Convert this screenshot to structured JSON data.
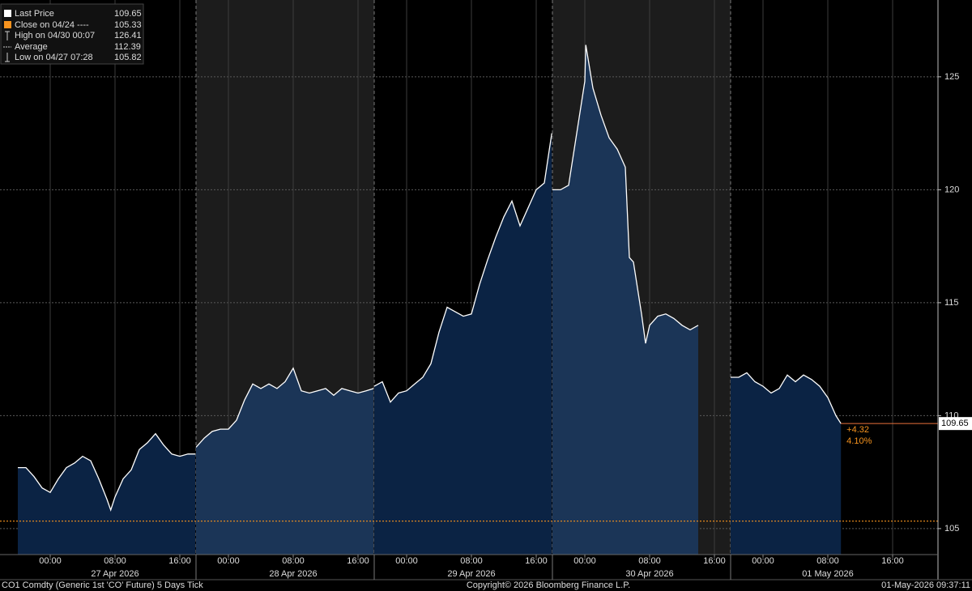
{
  "chart_data": {
    "type": "line",
    "x": [
      "04/26 20:00",
      "04/26 21:00",
      "04/26 22:00",
      "04/26 23:00",
      "04/27 00:00",
      "04/27 01:00",
      "04/27 02:00",
      "04/27 03:00",
      "04/27 04:00",
      "04/27 05:00",
      "04/27 06:00",
      "04/27 07:00",
      "04/27 07:28",
      "04/27 08:00",
      "04/27 09:00",
      "04/27 10:00",
      "04/27 11:00",
      "04/27 12:00",
      "04/27 13:00",
      "04/27 14:00",
      "04/27 15:00",
      "04/27 16:00",
      "04/27 17:00",
      "04/27 17:55",
      "04/27 20:00",
      "04/27 21:00",
      "04/27 22:00",
      "04/27 23:00",
      "04/28 00:00",
      "04/28 01:00",
      "04/28 02:00",
      "04/28 03:00",
      "04/28 04:00",
      "04/28 05:00",
      "04/28 06:00",
      "04/28 07:00",
      "04/28 08:00",
      "04/28 09:00",
      "04/28 10:00",
      "04/28 11:00",
      "04/28 12:00",
      "04/28 13:00",
      "04/28 14:00",
      "04/28 15:00",
      "04/28 16:00",
      "04/28 17:00",
      "04/28 17:55",
      "04/28 20:00",
      "04/28 21:00",
      "04/28 22:00",
      "04/28 23:00",
      "04/29 00:00",
      "04/29 01:00",
      "04/29 02:00",
      "04/29 03:00",
      "04/29 04:00",
      "04/29 05:00",
      "04/29 06:00",
      "04/29 07:00",
      "04/29 08:00",
      "04/29 09:00",
      "04/29 10:00",
      "04/29 11:00",
      "04/29 12:00",
      "04/29 13:00",
      "04/29 14:00",
      "04/29 15:00",
      "04/29 16:00",
      "04/29 17:00",
      "04/29 17:55",
      "04/29 20:00",
      "04/29 21:00",
      "04/29 22:00",
      "04/29 23:00",
      "04/30 00:00",
      "04/30 00:07",
      "04/30 01:00",
      "04/30 02:00",
      "04/30 03:00",
      "04/30 04:00",
      "04/30 05:00",
      "04/30 05:30",
      "04/30 06:00",
      "04/30 07:00",
      "04/30 07:30",
      "04/30 08:00",
      "04/30 09:00",
      "04/30 10:00",
      "04/30 11:00",
      "04/30 12:00",
      "04/30 13:00",
      "04/30 14:00",
      "04/30 20:00",
      "04/30 21:00",
      "04/30 22:00",
      "04/30 23:00",
      "05/01 00:00",
      "05/01 01:00",
      "05/01 02:00",
      "05/01 03:00",
      "05/01 04:00",
      "05/01 05:00",
      "05/01 06:00",
      "05/01 07:00",
      "05/01 08:00",
      "05/01 09:00",
      "05/01 09:37"
    ],
    "series": [
      {
        "name": "Last Price",
        "color": "#ffffff",
        "values": [
          107.7,
          107.7,
          107.3,
          106.8,
          106.6,
          107.2,
          107.7,
          107.9,
          108.2,
          108.0,
          107.2,
          106.3,
          105.82,
          106.4,
          107.2,
          107.6,
          108.5,
          108.8,
          109.2,
          108.7,
          108.3,
          108.2,
          108.3,
          108.3,
          108.6,
          109.0,
          109.3,
          109.4,
          109.4,
          109.8,
          110.7,
          111.4,
          111.2,
          111.4,
          111.2,
          111.5,
          112.1,
          111.1,
          111.0,
          111.1,
          111.2,
          110.9,
          111.2,
          111.1,
          111.0,
          111.1,
          111.2,
          111.3,
          111.5,
          110.6,
          111.0,
          111.1,
          111.4,
          111.7,
          112.3,
          113.7,
          114.8,
          114.6,
          114.4,
          114.5,
          115.8,
          116.9,
          117.9,
          118.8,
          119.5,
          118.4,
          119.2,
          120.0,
          120.3,
          122.5,
          120.0,
          120.0,
          120.2,
          122.5,
          124.8,
          126.41,
          124.5,
          123.3,
          122.3,
          121.8,
          121.0,
          117.0,
          116.8,
          114.5,
          113.2,
          114.0,
          114.4,
          114.5,
          114.3,
          114.0,
          113.8,
          114.0,
          111.7,
          111.7,
          111.9,
          111.5,
          111.3,
          111.0,
          111.2,
          111.8,
          111.5,
          111.8,
          111.6,
          111.3,
          110.8,
          110.0,
          109.65
        ]
      }
    ],
    "xlim": [
      "04/26 20:00",
      "05/01 18:00"
    ],
    "ylim": [
      103.85,
      128.4
    ],
    "yticks": [
      105,
      110,
      115,
      120,
      125
    ],
    "xticks": [
      {
        "value": "04/27 00:00",
        "label": "00:00"
      },
      {
        "value": "04/27 08:00",
        "label": "08:00"
      },
      {
        "value": "04/27 16:00",
        "label": "16:00"
      },
      {
        "value": "04/28 00:00",
        "label": "00:00"
      },
      {
        "value": "04/28 08:00",
        "label": "08:00"
      },
      {
        "value": "04/28 16:00",
        "label": "16:00"
      },
      {
        "value": "04/29 00:00",
        "label": "00:00"
      },
      {
        "value": "04/29 08:00",
        "label": "08:00"
      },
      {
        "value": "04/29 16:00",
        "label": "16:00"
      },
      {
        "value": "04/30 00:00",
        "label": "00:00"
      },
      {
        "value": "04/30 08:00",
        "label": "08:00"
      },
      {
        "value": "04/30 16:00",
        "label": "16:00"
      },
      {
        "value": "05/01 00:00",
        "label": "00:00"
      },
      {
        "value": "05/01 08:00",
        "label": "08:00"
      },
      {
        "value": "05/01 16:00",
        "label": "16:00"
      }
    ],
    "date_labels": [
      {
        "value": "04/27 08:00",
        "label": "27 Apr 2026"
      },
      {
        "value": "04/28 08:00",
        "label": "28 Apr 2026"
      },
      {
        "value": "04/29 08:00",
        "label": "29 Apr 2026"
      },
      {
        "value": "04/30 08:00",
        "label": "30 Apr 2026"
      },
      {
        "value": "05/01 08:00",
        "label": "01 May 2026"
      }
    ],
    "last_value": 109.65,
    "stats": [
      {
        "label": "Close on 04/24 ----",
        "value": 105.33,
        "color": "#f7931e"
      },
      {
        "label": "High on 04/30 00:07",
        "value": 126.41
      },
      {
        "label": "Average",
        "value": 112.39
      },
      {
        "label": "Low on 04/27 07:28",
        "value": 105.82
      }
    ],
    "annotations": [
      "+4.32",
      "4.10%"
    ],
    "grid": true,
    "footer": {
      "left": "CO1 Comdty (Generic 1st 'CO' Future) 5 Days Tick",
      "center": "Copyright© 2026 Bloomberg Finance L.P.",
      "right": "01-May-2026 09:37:11"
    }
  }
}
